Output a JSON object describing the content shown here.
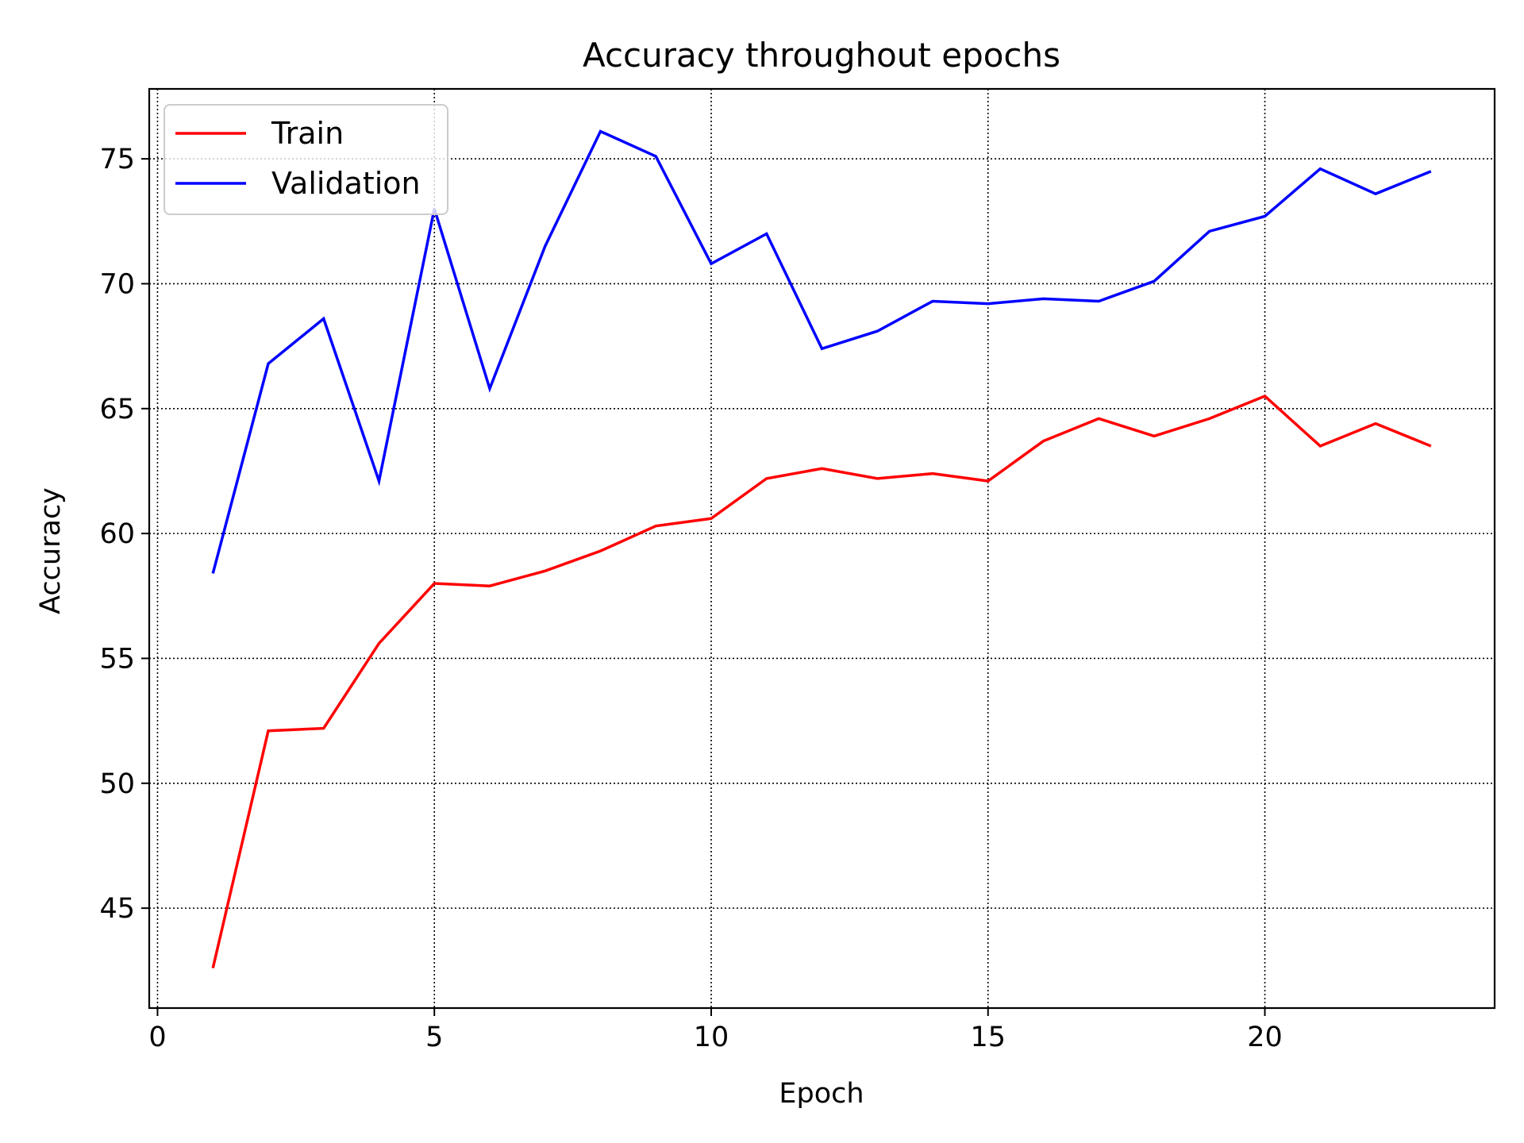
{
  "chart_data": {
    "type": "line",
    "title": "Accuracy throughout epochs",
    "xlabel": "Epoch",
    "ylabel": "Accuracy",
    "xlim": [
      -0.15,
      24.15
    ],
    "ylim": [
      41.0,
      77.8
    ],
    "xticks": [
      0,
      5,
      10,
      15,
      20
    ],
    "yticks": [
      45,
      50,
      55,
      60,
      65,
      70,
      75
    ],
    "grid": true,
    "legend_position": "top-left",
    "x": [
      1,
      2,
      3,
      4,
      5,
      6,
      7,
      8,
      9,
      10,
      11,
      12,
      13,
      14,
      15,
      16,
      17,
      18,
      19,
      20,
      21,
      22,
      23
    ],
    "series": [
      {
        "name": "Train",
        "color": "#ff0000",
        "values": [
          42.6,
          52.1,
          52.2,
          55.6,
          58.0,
          57.9,
          58.5,
          59.3,
          60.3,
          60.6,
          62.2,
          62.6,
          62.2,
          62.4,
          62.1,
          63.7,
          64.6,
          63.9,
          64.6,
          65.5,
          63.5,
          64.4,
          63.5
        ]
      },
      {
        "name": "Validation",
        "color": "#0000ff",
        "values": [
          58.4,
          66.8,
          68.6,
          62.1,
          73.0,
          65.8,
          71.5,
          76.1,
          75.1,
          70.8,
          72.0,
          67.4,
          68.1,
          69.3,
          69.2,
          69.4,
          69.3,
          70.1,
          72.1,
          72.7,
          74.6,
          73.6,
          74.5
        ]
      }
    ]
  }
}
